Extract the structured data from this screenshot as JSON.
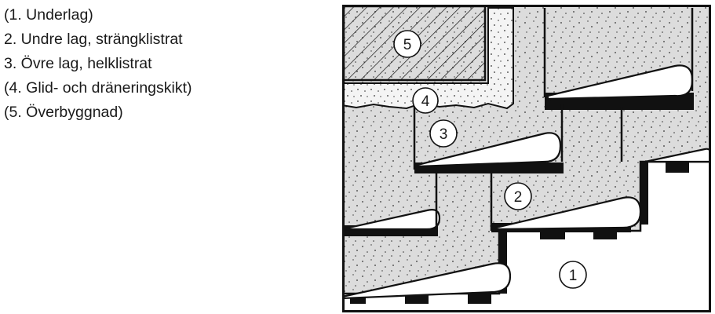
{
  "legend": [
    "(1. Underlag)",
    "2. Undre lag, strängklistrat",
    "3. Övre lag, helklistrat",
    "(4. Glid- och dräneringskikt)",
    "(5. Överbyggnad)"
  ],
  "callouts": {
    "c1": "1",
    "c2": "2",
    "c3": "3",
    "c4": "4",
    "c5": "5"
  },
  "colors": {
    "ink": "#111111",
    "membrane_fill": "#dcdcdc",
    "drainage_fill": "#f4f4f4",
    "background": "#ffffff"
  }
}
